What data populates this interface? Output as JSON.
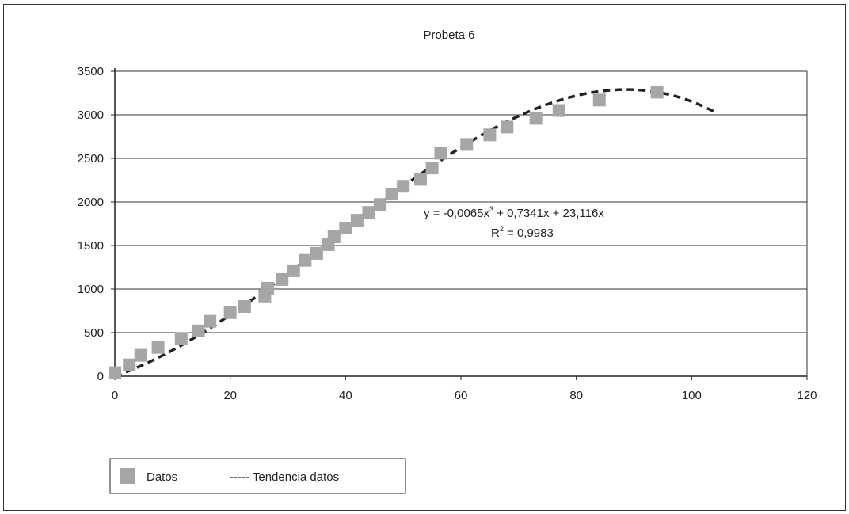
{
  "chart_data": {
    "type": "scatter",
    "title": "Probeta 6",
    "xlabel": "",
    "ylabel": "",
    "xlim": [
      0,
      120
    ],
    "ylim": [
      0,
      3500
    ],
    "x_ticks": [
      0,
      20,
      40,
      60,
      80,
      100,
      120
    ],
    "y_ticks": [
      0,
      500,
      1000,
      1500,
      2000,
      2500,
      3000,
      3500
    ],
    "grid": "horizontal",
    "series": [
      {
        "name": "Datos",
        "kind": "scatter",
        "color": "#a6a6a6",
        "points": [
          [
            0,
            40
          ],
          [
            2.5,
            130
          ],
          [
            4.5,
            240
          ],
          [
            7.5,
            330
          ],
          [
            11.5,
            430
          ],
          [
            14.5,
            520
          ],
          [
            16.5,
            630
          ],
          [
            20,
            730
          ],
          [
            22.5,
            800
          ],
          [
            26,
            920
          ],
          [
            26.5,
            1010
          ],
          [
            29,
            1110
          ],
          [
            31,
            1210
          ],
          [
            33,
            1330
          ],
          [
            35,
            1410
          ],
          [
            37,
            1510
          ],
          [
            38,
            1600
          ],
          [
            40,
            1700
          ],
          [
            42,
            1790
          ],
          [
            44,
            1880
          ],
          [
            46,
            1970
          ],
          [
            48,
            2090
          ],
          [
            50,
            2180
          ],
          [
            53,
            2260
          ],
          [
            55,
            2390
          ],
          [
            56.5,
            2560
          ],
          [
            61,
            2660
          ],
          [
            65,
            2770
          ],
          [
            68,
            2860
          ],
          [
            73,
            2960
          ],
          [
            77,
            3050
          ],
          [
            84,
            3170
          ],
          [
            94,
            3260
          ]
        ]
      },
      {
        "name": "Tendencia datos",
        "kind": "trendline",
        "color": "#222222",
        "x_range": [
          0,
          104
        ],
        "coefficients": {
          "a3": -0.0065,
          "a2": 0.7341,
          "a1": 23.116
        }
      }
    ],
    "annotation": {
      "equation_main": "y = -0,0065x",
      "equation_exp": "3",
      "equation_rest": " + 0,7341x + 23,116x",
      "r2_label": "R",
      "r2_exp": "2",
      "r2_value": " = 0,9983"
    },
    "legend": {
      "placement": "bottom-left",
      "items": [
        "Datos",
        "----- Tendencia datos"
      ]
    }
  }
}
